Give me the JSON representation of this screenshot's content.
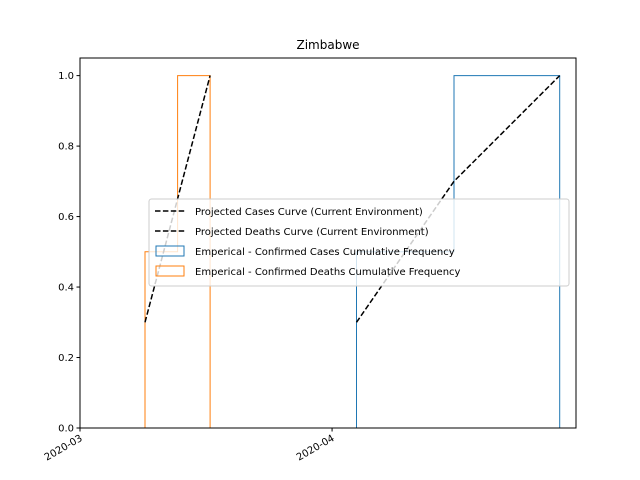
{
  "chart_data": {
    "type": "histogram-step",
    "title": "Zimbabwe",
    "xlabel": "",
    "ylabel": "",
    "x_ticks": [
      {
        "date": "2020-03-01",
        "label": "2020-03"
      },
      {
        "date": "2020-04-01",
        "label": "2020-04"
      }
    ],
    "y_ticks": [
      "0.0",
      "0.2",
      "0.4",
      "0.6",
      "0.8",
      "1.0"
    ],
    "xlim": [
      "2020-03-01",
      "2020-04-31"
    ],
    "ylim": [
      0,
      1.05
    ],
    "legend_position": "center-right",
    "series": [
      {
        "name": "Projected Cases Curve (Current Environment)",
        "kind": "line",
        "style": "dashed",
        "color": "#000000",
        "points": [
          {
            "x": "2020-04-04",
            "y": 0.3
          },
          {
            "x": "2020-04-16",
            "y": 0.7
          },
          {
            "x": "2020-04-29",
            "y": 1.0
          }
        ]
      },
      {
        "name": "Projected Deaths Curve (Current Environment)",
        "kind": "line",
        "style": "dashed",
        "color": "#000000",
        "points": [
          {
            "x": "2020-03-09",
            "y": 0.3
          },
          {
            "x": "2020-03-17",
            "y": 1.0
          }
        ]
      },
      {
        "name": "Emperical - Confirmed Cases Cumulative Frequency",
        "kind": "step",
        "color": "#1f77b4",
        "bins": [
          {
            "start": "2020-04-04",
            "end": "2020-04-16",
            "value": 0.5
          },
          {
            "start": "2020-04-16",
            "end": "2020-04-29",
            "value": 1.0
          }
        ]
      },
      {
        "name": "Emperical - Confirmed Deaths Cumulative Frequency",
        "kind": "step",
        "color": "#ff7f0e",
        "bins": [
          {
            "start": "2020-03-09",
            "end": "2020-03-13",
            "value": 0.5
          },
          {
            "start": "2020-03-13",
            "end": "2020-03-17",
            "value": 1.0
          }
        ]
      }
    ]
  }
}
